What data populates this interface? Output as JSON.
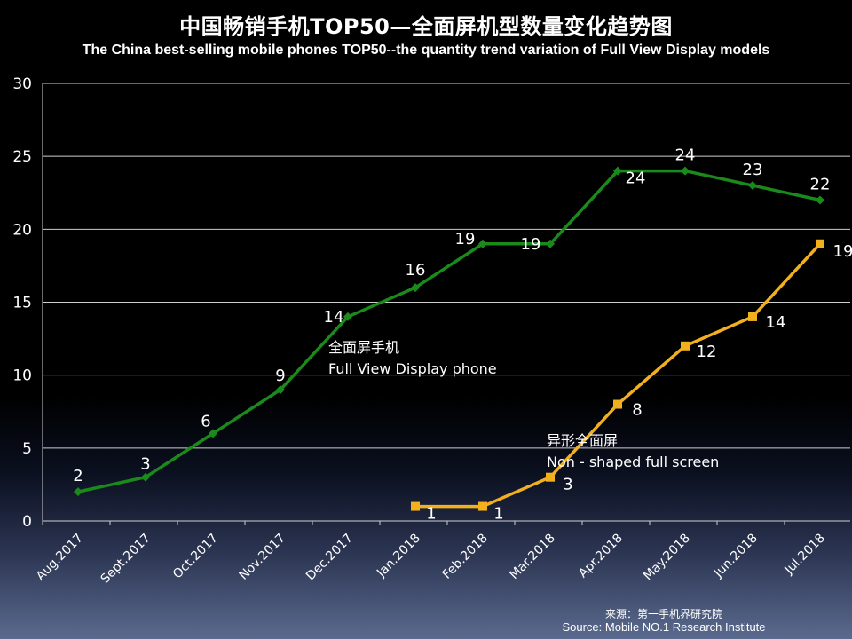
{
  "title_cn": "中国畅销手机TOP50—全面屏机型数量变化趋势图",
  "title_en": "The China best-selling mobile phones TOP50--the quantity trend variation of Full View Display models",
  "source_cn": "来源：第一手机界研究院",
  "source_en": "Source: Mobile NO.1 Research Institute",
  "chart_data": {
    "type": "line",
    "title": "中国畅销手机TOP50—全面屏机型数量变化趋势图",
    "subtitle": "The China best-selling mobile phones TOP50--the quantity trend variation of Full View Display models",
    "xlabel": "",
    "ylabel": "",
    "ylim": [
      0,
      30
    ],
    "yticks": [
      0,
      5,
      10,
      15,
      20,
      25,
      30
    ],
    "grid": "horizontal",
    "categories": [
      "Aug.2017",
      "Sept.2017",
      "Oct.2017",
      "Nov.2017",
      "Dec.2017",
      "Jan.2018",
      "Feb.2018",
      "Mar.2018",
      "Apr.2018",
      "May.2018",
      "Jun.2018",
      "Jul.2018"
    ],
    "series": [
      {
        "values": [
          2,
          3,
          6,
          9,
          14,
          16,
          19,
          19,
          24,
          24,
          23,
          22
        ],
        "color": "#1a8a1a",
        "marker": "diamond",
        "annotation_cn": "全面屏手机",
        "annotation_en": "Full View Display phone"
      },
      {
        "values": [
          null,
          null,
          null,
          null,
          null,
          1,
          1,
          3,
          8,
          12,
          14,
          19
        ],
        "color": "#f2b01e",
        "marker": "square",
        "annotation_cn": "异形全面屏",
        "annotation_en": "Non - shaped full screen"
      }
    ]
  }
}
